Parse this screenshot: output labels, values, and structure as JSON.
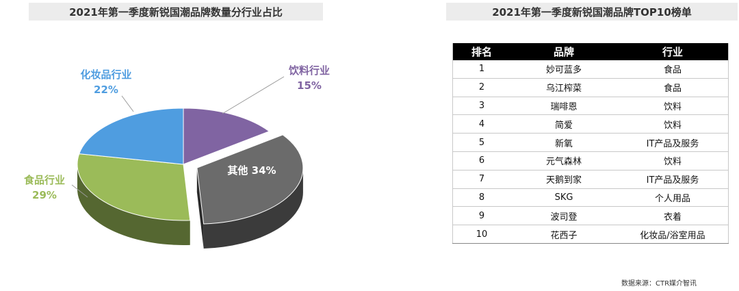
{
  "left_title": "2021年第一季度新锐国潮品牌数量分行业占比",
  "right_title": "2021年第一季度新锐国潮品牌TOP10榜单",
  "chart_data": {
    "type": "pie",
    "title": "2021年第一季度新锐国潮品牌数量分行业占比",
    "slices": [
      {
        "name": "饮料行业",
        "value": 15,
        "label": "15%",
        "color": "#8064A2"
      },
      {
        "name": "其他",
        "value": 34,
        "label": "34%",
        "color": "#6b6b6b"
      },
      {
        "name": "食品行业",
        "value": 29,
        "label": "29%",
        "color": "#9BBB59"
      },
      {
        "name": "化妆品行业",
        "value": 22,
        "label": "22%",
        "color": "#4F9DE0"
      }
    ],
    "exploded": "其他",
    "style": "3d"
  },
  "labels": {
    "cosmetics": {
      "name": "化妆品行业",
      "pct": "22%",
      "color": "#4F9DE0"
    },
    "beverage": {
      "name": "饮料行业",
      "pct": "15%",
      "color": "#8064A2"
    },
    "food": {
      "name": "食品行业",
      "pct": "29%",
      "color": "#9BBB59"
    },
    "other": {
      "text": "其他 34%",
      "color": "#ffffff"
    }
  },
  "table": {
    "headers": [
      "排名",
      "品牌",
      "行业"
    ],
    "rows": [
      [
        "1",
        "妙可蓝多",
        "食品"
      ],
      [
        "2",
        "乌江榨菜",
        "食品"
      ],
      [
        "3",
        "瑞啡恩",
        "饮料"
      ],
      [
        "4",
        "简爱",
        "饮料"
      ],
      [
        "5",
        "新氧",
        "IT产品及服务"
      ],
      [
        "6",
        "元气森林",
        "饮料"
      ],
      [
        "7",
        "天鹅到家",
        "IT产品及服务"
      ],
      [
        "8",
        "SKG",
        "个人用品"
      ],
      [
        "9",
        "波司登",
        "衣着"
      ],
      [
        "10",
        "花西子",
        "化妆品/浴室用品"
      ]
    ]
  },
  "source": "数据来源：CTR媒介智讯"
}
